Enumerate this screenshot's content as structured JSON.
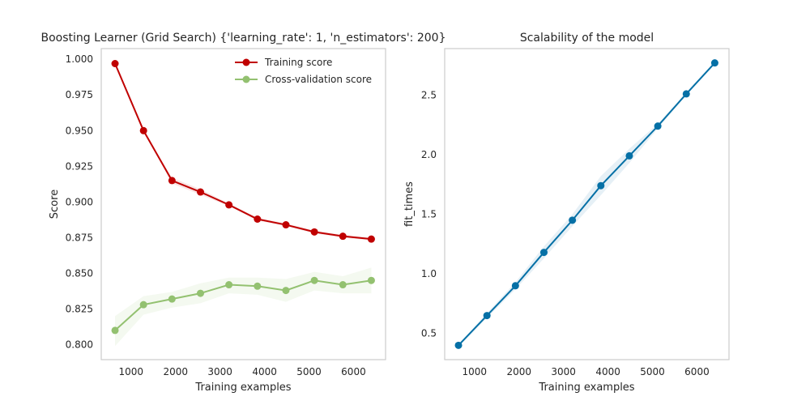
{
  "chart_data": [
    {
      "type": "line",
      "title": "Boosting Learner (Grid Search) {'learning_rate': 1, 'n_estimators': 200}",
      "xlabel": "Training examples",
      "ylabel": "Score",
      "xlim": [
        330,
        6720
      ],
      "ylim": [
        0.7895,
        1.0075
      ],
      "xticks": [
        1000,
        2000,
        3000,
        4000,
        5000,
        6000
      ],
      "yticks": [
        0.8,
        0.825,
        0.85,
        0.875,
        0.9,
        0.925,
        0.95,
        0.975,
        1.0
      ],
      "ytick_labels": [
        "0.800",
        "0.825",
        "0.850",
        "0.875",
        "0.900",
        "0.925",
        "0.950",
        "0.975",
        "1.000"
      ],
      "grid": false,
      "legend": "top-right",
      "x": [
        640,
        1280,
        1920,
        2560,
        3200,
        3840,
        4480,
        5120,
        5760,
        6400
      ],
      "series": [
        {
          "name": "Training score",
          "color": "#c00000",
          "values": [
            0.997,
            0.95,
            0.915,
            0.907,
            0.898,
            0.888,
            0.884,
            0.879,
            0.876,
            0.874
          ],
          "band_lower": [
            0.997,
            0.95,
            0.913,
            0.905,
            0.897,
            0.887,
            0.883,
            0.878,
            0.875,
            0.873
          ],
          "band_upper": [
            0.997,
            0.95,
            0.917,
            0.909,
            0.899,
            0.889,
            0.885,
            0.88,
            0.877,
            0.875
          ]
        },
        {
          "name": "Cross-validation score",
          "color": "#93c170",
          "values": [
            0.81,
            0.828,
            0.832,
            0.836,
            0.842,
            0.841,
            0.838,
            0.845,
            0.842,
            0.845
          ],
          "band_lower": [
            0.799,
            0.821,
            0.826,
            0.829,
            0.836,
            0.835,
            0.83,
            0.838,
            0.836,
            0.836
          ],
          "band_upper": [
            0.82,
            0.834,
            0.837,
            0.843,
            0.847,
            0.847,
            0.846,
            0.851,
            0.848,
            0.854
          ]
        }
      ]
    },
    {
      "type": "line",
      "title": "Scalability of the model",
      "xlabel": "Training examples",
      "ylabel": "fit_times",
      "xlim": [
        330,
        6720
      ],
      "ylim": [
        0.28,
        2.89
      ],
      "xticks": [
        1000,
        2000,
        3000,
        4000,
        5000,
        6000
      ],
      "yticks": [
        0.5,
        1.0,
        1.5,
        2.0,
        2.5
      ],
      "ytick_labels": [
        "0.5",
        "1.0",
        "1.5",
        "2.0",
        "2.5"
      ],
      "grid": false,
      "x": [
        640,
        1280,
        1920,
        2560,
        3200,
        3840,
        4480,
        5120,
        5760,
        6400
      ],
      "series": [
        {
          "name": "",
          "color": "#0570a6",
          "values": [
            0.4,
            0.65,
            0.9,
            1.18,
            1.45,
            1.74,
            1.99,
            2.24,
            2.51,
            2.77
          ],
          "band_lower": [
            0.39,
            0.63,
            0.87,
            1.13,
            1.4,
            1.66,
            1.93,
            2.22,
            2.5,
            2.76
          ],
          "band_upper": [
            0.41,
            0.67,
            0.93,
            1.23,
            1.5,
            1.82,
            2.05,
            2.26,
            2.52,
            2.78
          ]
        }
      ]
    }
  ]
}
